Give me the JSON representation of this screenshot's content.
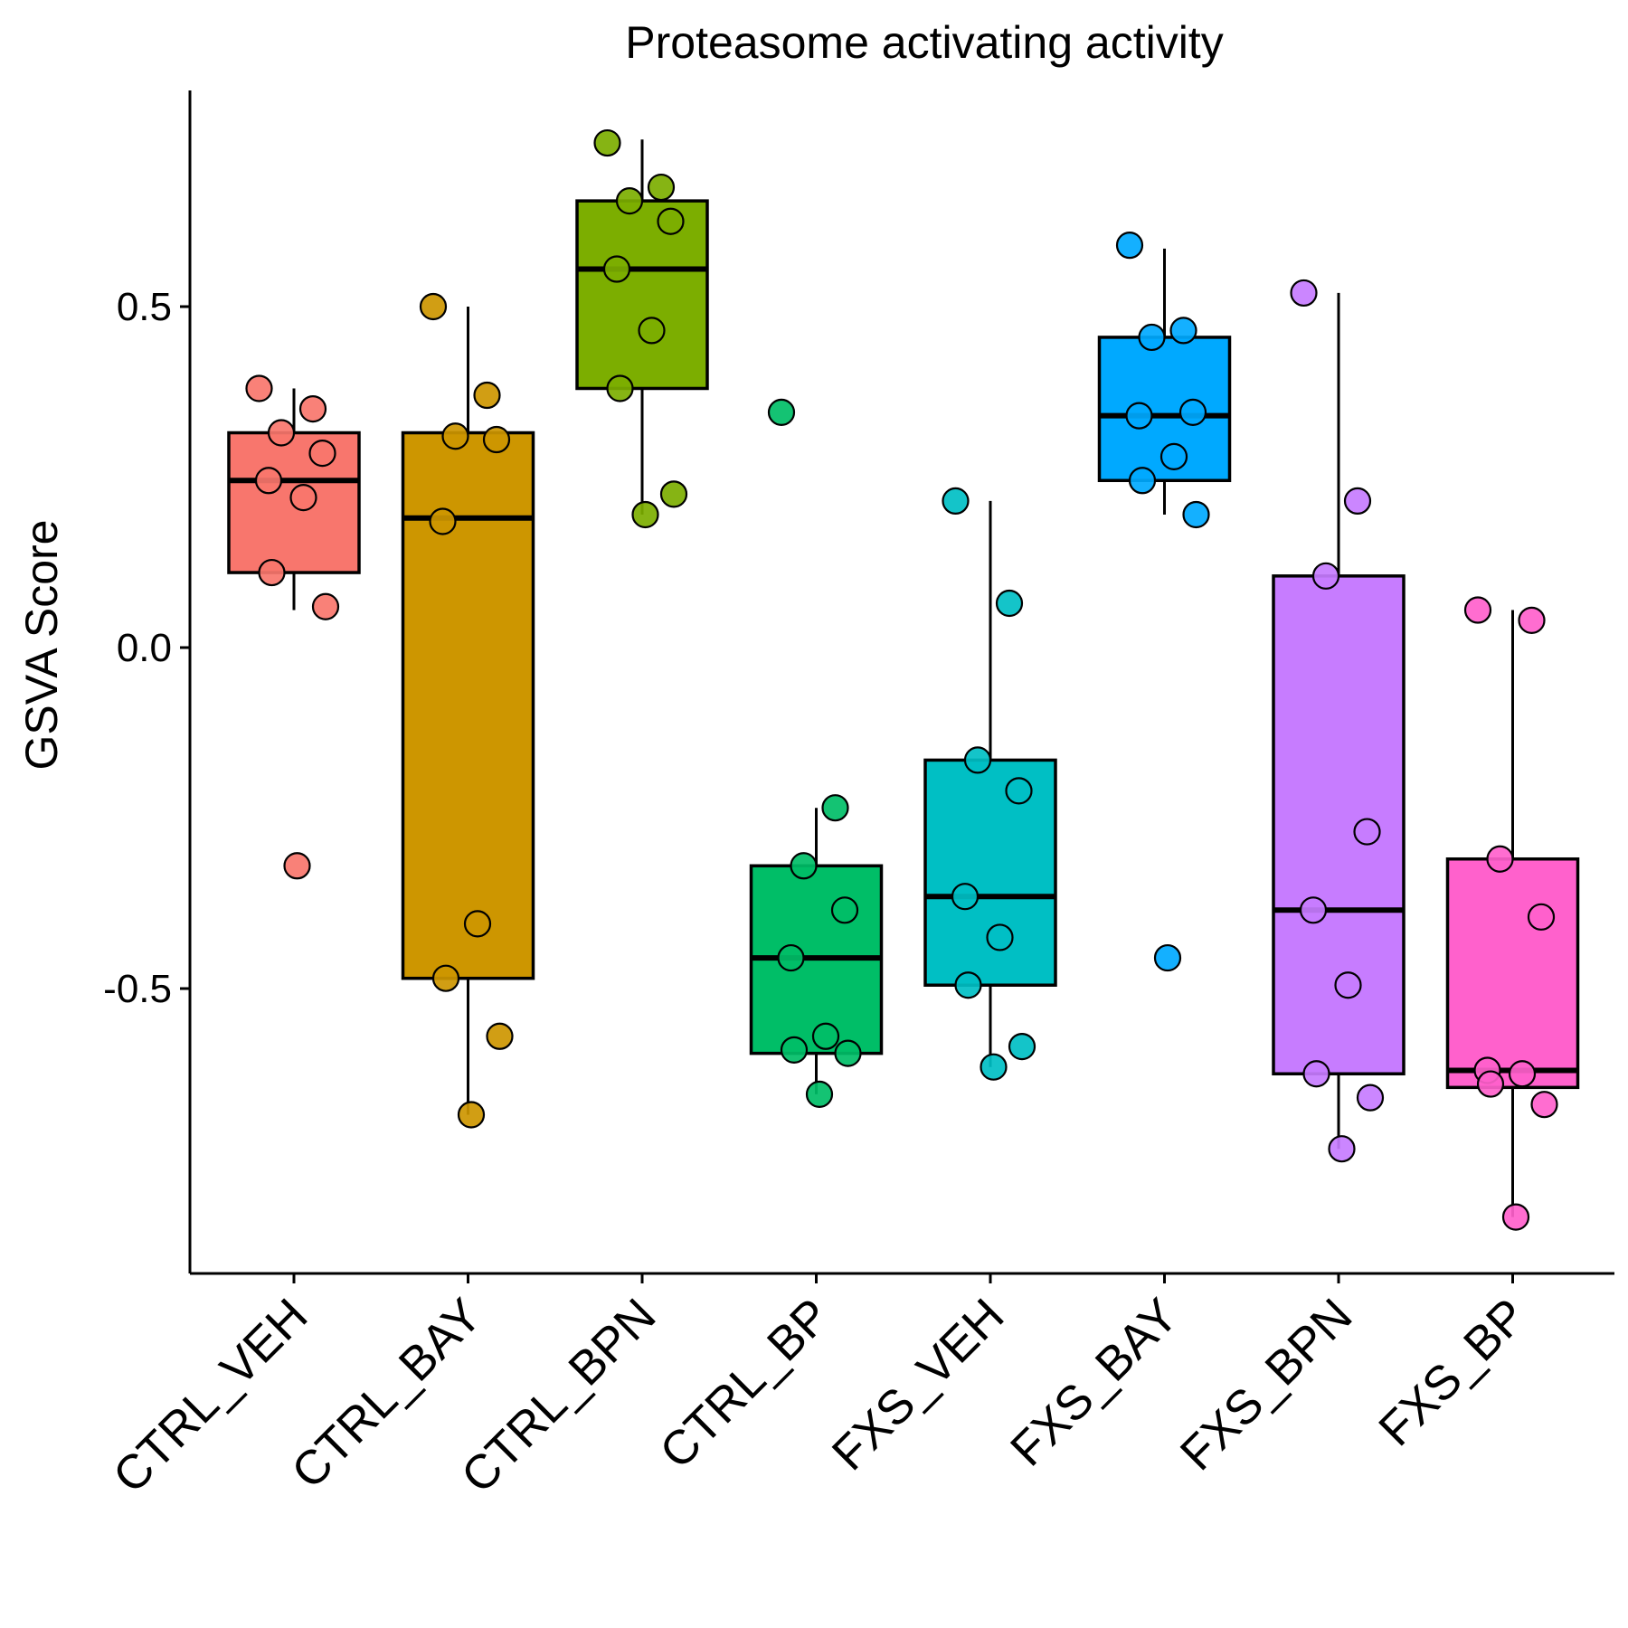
{
  "chart_data": {
    "type": "box",
    "title": "Proteasome activating activity",
    "ylabel": "GSVA Score",
    "xlabel": "",
    "ylim": [
      -0.91,
      0.82
    ],
    "yticks": [
      {
        "value": 0.5,
        "label": "0.5"
      },
      {
        "value": 0.0,
        "label": "0.0"
      },
      {
        "value": -0.5,
        "label": "-0.5"
      }
    ],
    "categories": [
      "CTRL_VEH",
      "CTRL_BAY",
      "CTRL_BPN",
      "CTRL_BP",
      "FXS_VEH",
      "FXS_BAY",
      "FXS_BPN",
      "FXS_BP"
    ],
    "colors": [
      "#F8766D",
      "#CD9600",
      "#7CAE00",
      "#00BE67",
      "#00BFC4",
      "#00A9FF",
      "#C77CFF",
      "#FF61CC"
    ],
    "boxes": [
      {
        "q1": 0.11,
        "median": 0.245,
        "q3": 0.315,
        "whisker_low": 0.055,
        "whisker_high": 0.38
      },
      {
        "q1": -0.485,
        "median": 0.19,
        "q3": 0.315,
        "whisker_low": -0.685,
        "whisker_high": 0.5
      },
      {
        "q1": 0.38,
        "median": 0.555,
        "q3": 0.655,
        "whisker_low": 0.195,
        "whisker_high": 0.745
      },
      {
        "q1": -0.595,
        "median": -0.455,
        "q3": -0.32,
        "whisker_low": -0.655,
        "whisker_high": -0.235
      },
      {
        "q1": -0.495,
        "median": -0.365,
        "q3": -0.165,
        "whisker_low": -0.615,
        "whisker_high": 0.215
      },
      {
        "q1": 0.245,
        "median": 0.34,
        "q3": 0.455,
        "whisker_low": 0.195,
        "whisker_high": 0.585
      },
      {
        "q1": -0.625,
        "median": -0.385,
        "q3": 0.105,
        "whisker_low": -0.735,
        "whisker_high": 0.52
      },
      {
        "q1": -0.645,
        "median": -0.62,
        "q3": -0.31,
        "whisker_low": -0.835,
        "whisker_high": 0.055
      }
    ],
    "points": [
      [
        0.38,
        0.35,
        0.315,
        0.285,
        0.245,
        0.22,
        0.11,
        0.06,
        -0.32
      ],
      [
        0.5,
        0.37,
        0.31,
        0.305,
        0.185,
        -0.405,
        -0.485,
        -0.57,
        -0.685
      ],
      [
        0.74,
        0.675,
        0.655,
        0.625,
        0.555,
        0.465,
        0.38,
        0.225,
        0.195
      ],
      [
        0.345,
        -0.235,
        -0.32,
        -0.385,
        -0.455,
        -0.57,
        -0.59,
        -0.595,
        -0.655
      ],
      [
        0.215,
        0.065,
        -0.165,
        -0.21,
        -0.365,
        -0.425,
        -0.495,
        -0.585,
        -0.615
      ],
      [
        0.59,
        0.465,
        0.455,
        0.345,
        0.34,
        0.28,
        0.245,
        0.195,
        -0.455
      ],
      [
        0.52,
        0.215,
        0.105,
        -0.27,
        -0.385,
        -0.495,
        -0.625,
        -0.66,
        -0.735
      ],
      [
        0.055,
        0.04,
        -0.31,
        -0.395,
        -0.62,
        -0.625,
        -0.64,
        -0.67,
        -0.835
      ]
    ],
    "legend": "none",
    "grid": false
  }
}
